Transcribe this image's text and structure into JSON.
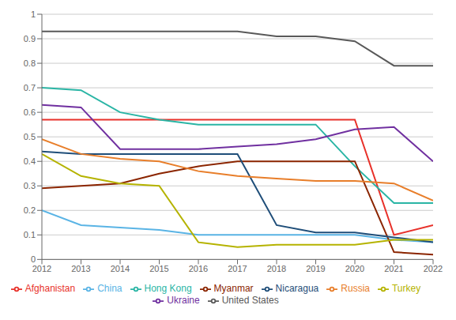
{
  "chart_data": {
    "type": "line",
    "x": [
      2012,
      2013,
      2014,
      2015,
      2016,
      2017,
      2018,
      2019,
      2020,
      2021,
      2022
    ],
    "series": [
      {
        "name": "Afghanistan",
        "color": "#e8312a",
        "values": [
          0.57,
          0.57,
          0.57,
          0.57,
          0.57,
          0.57,
          0.57,
          0.57,
          0.57,
          0.1,
          0.14
        ]
      },
      {
        "name": "China",
        "color": "#5ab4e5",
        "values": [
          0.2,
          0.14,
          0.13,
          0.12,
          0.1,
          0.1,
          0.1,
          0.1,
          0.1,
          0.08,
          0.07
        ]
      },
      {
        "name": "Hong Kong",
        "color": "#2ab5a5",
        "values": [
          0.7,
          0.69,
          0.6,
          0.57,
          0.55,
          0.55,
          0.55,
          0.55,
          0.38,
          0.23,
          0.23
        ]
      },
      {
        "name": "Myanmar",
        "color": "#8b2500",
        "values": [
          0.29,
          0.3,
          0.31,
          0.35,
          0.38,
          0.4,
          0.4,
          0.4,
          0.4,
          0.03,
          0.02
        ]
      },
      {
        "name": "Nicaragua",
        "color": "#1f4e79",
        "values": [
          0.44,
          0.43,
          0.43,
          0.43,
          0.43,
          0.43,
          0.14,
          0.11,
          0.11,
          0.09,
          0.07
        ]
      },
      {
        "name": "Russia",
        "color": "#e87e2a",
        "values": [
          0.49,
          0.43,
          0.41,
          0.4,
          0.36,
          0.34,
          0.33,
          0.32,
          0.32,
          0.31,
          0.24
        ]
      },
      {
        "name": "Turkey",
        "color": "#b5b300",
        "values": [
          0.43,
          0.34,
          0.31,
          0.3,
          0.07,
          0.05,
          0.06,
          0.06,
          0.06,
          0.08,
          0.08
        ]
      },
      {
        "name": "Ukraine",
        "color": "#7030a0",
        "values": [
          0.63,
          0.62,
          0.45,
          0.45,
          0.45,
          0.46,
          0.47,
          0.49,
          0.53,
          0.54,
          0.4
        ]
      },
      {
        "name": "United States",
        "color": "#595959",
        "values": [
          0.93,
          0.93,
          0.93,
          0.93,
          0.93,
          0.93,
          0.91,
          0.91,
          0.89,
          0.79,
          0.79
        ]
      }
    ],
    "xlim": [
      2012,
      2022
    ],
    "xticks": [
      2012,
      2013,
      2014,
      2015,
      2016,
      2017,
      2018,
      2019,
      2020,
      2021,
      2022
    ],
    "ylim": [
      0,
      1
    ],
    "yticks": [
      0,
      0.1,
      0.2,
      0.3,
      0.4,
      0.5,
      0.6,
      0.7,
      0.8,
      0.9,
      1
    ],
    "grid": true,
    "legend": "bottom"
  }
}
